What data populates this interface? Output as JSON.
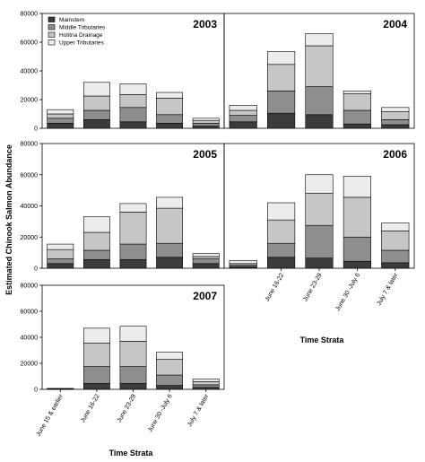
{
  "chart_data": {
    "type": "bar",
    "stacked": true,
    "ylabel": "Estimated Chinook Salmon Abundance",
    "xlabel": "Time Strata",
    "ylim": [
      0,
      80000
    ],
    "yticks": [
      0,
      20000,
      40000,
      60000,
      80000
    ],
    "categories": [
      "June 15 & earlier",
      "June 16-22",
      "June 23-29",
      "June 30 -July 6",
      "July 7 & later"
    ],
    "series_names": [
      "Mainstem",
      "Middle Tributaries",
      "Holitna Drainage",
      "Upper Tributaries"
    ],
    "series_colors": [
      "#3c3c3c",
      "#8e8e8e",
      "#c6c6c6",
      "#ececec"
    ],
    "legend": {
      "location": "top-left",
      "panel": "2003"
    },
    "grid": false,
    "panels": [
      {
        "title": "2003",
        "values": [
          [
            3500,
            6000,
            4500,
            3500,
            1500
          ],
          [
            3500,
            6500,
            10000,
            6000,
            2000
          ],
          [
            3000,
            10000,
            9000,
            11500,
            2000
          ],
          [
            3000,
            9500,
            7500,
            4000,
            1500
          ]
        ]
      },
      {
        "title": "2004",
        "values": [
          [
            4500,
            10500,
            9500,
            3000,
            2500
          ],
          [
            4500,
            15500,
            19500,
            9500,
            3500
          ],
          [
            3500,
            18500,
            28500,
            11500,
            5500
          ],
          [
            3500,
            9000,
            8500,
            2000,
            3000
          ]
        ]
      },
      {
        "title": "2005",
        "values": [
          [
            3000,
            5500,
            5500,
            7000,
            3000
          ],
          [
            3000,
            6000,
            10000,
            9000,
            3000
          ],
          [
            6000,
            11500,
            20500,
            22500,
            1500
          ],
          [
            3500,
            10000,
            5500,
            7000,
            2000
          ]
        ]
      },
      {
        "title": "2006",
        "values": [
          [
            1000,
            7000,
            6500,
            4500,
            3500
          ],
          [
            1000,
            9000,
            21000,
            15500,
            8000
          ],
          [
            1000,
            15000,
            20500,
            25500,
            12500
          ],
          [
            2000,
            11000,
            12000,
            13500,
            5000
          ]
        ]
      },
      {
        "title": "2007",
        "values": [
          [
            300,
            4500,
            4500,
            3000,
            1500
          ],
          [
            200,
            13000,
            13000,
            8000,
            2000
          ],
          [
            100,
            18000,
            19500,
            12000,
            2500
          ],
          [
            100,
            11500,
            11500,
            5500,
            2000
          ]
        ]
      }
    ]
  }
}
